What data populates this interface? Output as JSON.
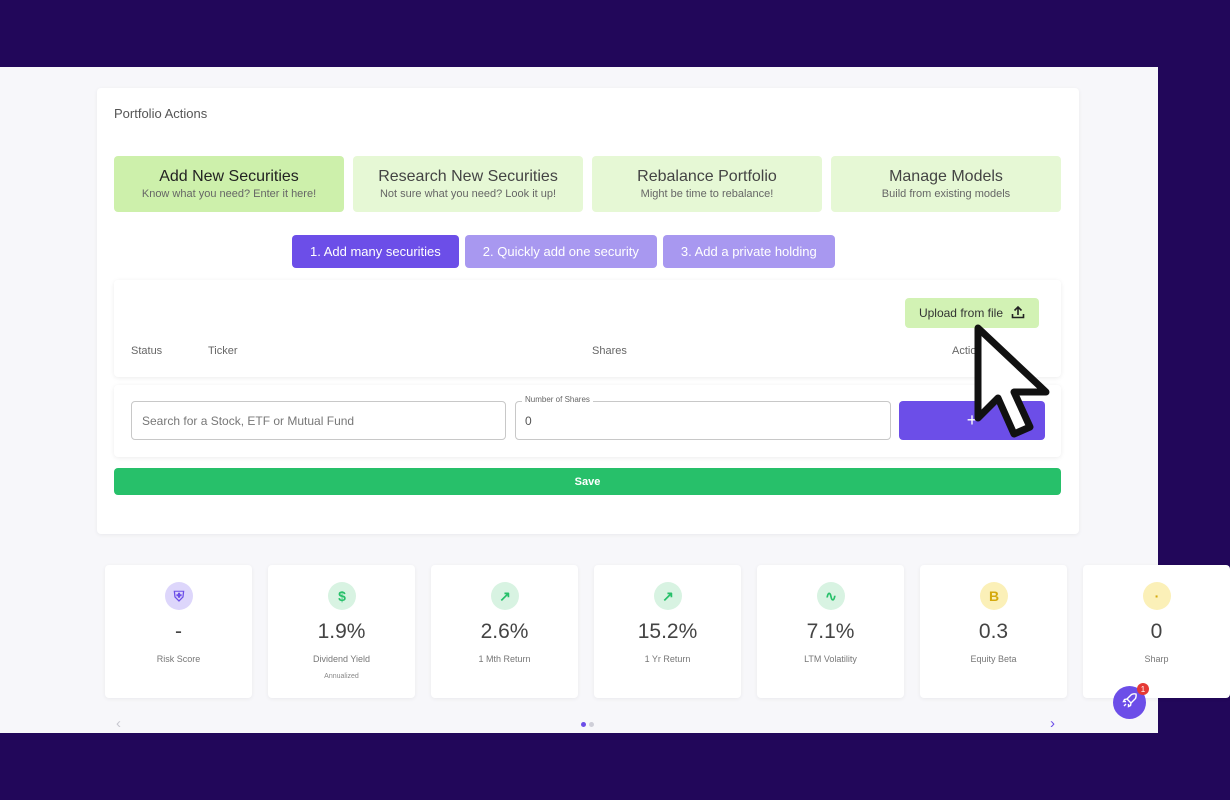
{
  "card": {
    "title": "Portfolio Actions"
  },
  "action_tiles": [
    {
      "title": "Add New Securities",
      "subtitle": "Know what you need? Enter it here!"
    },
    {
      "title": "Research New Securities",
      "subtitle": "Not sure what you need? Look it up!"
    },
    {
      "title": "Rebalance Portfolio",
      "subtitle": "Might be time to rebalance!"
    },
    {
      "title": "Manage Models",
      "subtitle": "Build from existing models"
    }
  ],
  "mode_tabs": [
    {
      "label": "1. Add many securities"
    },
    {
      "label": "2. Quickly add one security"
    },
    {
      "label": "3. Add a private holding"
    }
  ],
  "upload": {
    "label": "Upload from file",
    "icon": "upload-icon"
  },
  "columns": {
    "status": "Status",
    "ticker": "Ticker",
    "shares": "Shares",
    "actions": "Actions"
  },
  "entry": {
    "search_placeholder": "Search for a Stock, ETF or Mutual Fund",
    "shares_label": "Number of Shares",
    "shares_value": "0",
    "add_label": "+"
  },
  "save_label": "Save",
  "stats": [
    {
      "value": "-",
      "label": "Risk Score",
      "icon": "shield-icon",
      "icon_glyph": "⛨",
      "icon_bg": "#ddd6fb",
      "icon_color": "#6c4ee8"
    },
    {
      "value": "1.9%",
      "label": "Dividend Yield",
      "sub": "Annualized",
      "icon": "dollar-icon",
      "icon_glyph": "$",
      "icon_bg": "#d8f3e2",
      "icon_color": "#27c06a"
    },
    {
      "value": "2.6%",
      "label": "1 Mth Return",
      "icon": "trending-up-icon",
      "icon_glyph": "↗",
      "icon_bg": "#d8f3e2",
      "icon_color": "#27c06a"
    },
    {
      "value": "15.2%",
      "label": "1 Yr Return",
      "icon": "trending-up-icon",
      "icon_glyph": "↗",
      "icon_bg": "#d8f3e2",
      "icon_color": "#27c06a"
    },
    {
      "value": "7.1%",
      "label": "LTM Volatility",
      "icon": "activity-icon",
      "icon_glyph": "∿",
      "icon_bg": "#d8f3e2",
      "icon_color": "#27c06a"
    },
    {
      "value": "0.3",
      "label": "Equity Beta",
      "icon": "beta-icon",
      "icon_glyph": "B",
      "icon_bg": "#fbf0b8",
      "icon_color": "#d4a90c"
    },
    {
      "value": "0",
      "label": "Sharp",
      "icon": "ratio-icon",
      "icon_glyph": "·",
      "icon_bg": "#fbf0b8",
      "icon_color": "#d4a90c"
    }
  ],
  "carousel": {
    "prev": "‹",
    "next": "›",
    "pages": 2,
    "current": 1
  },
  "fab": {
    "badge": "1",
    "icon": "rocket-icon"
  },
  "colors": {
    "primary": "#6c4ee8",
    "primary_light": "#a898f0",
    "success": "#27c06a",
    "tile_green": "#e6f8d5",
    "frame": "#22075a"
  }
}
